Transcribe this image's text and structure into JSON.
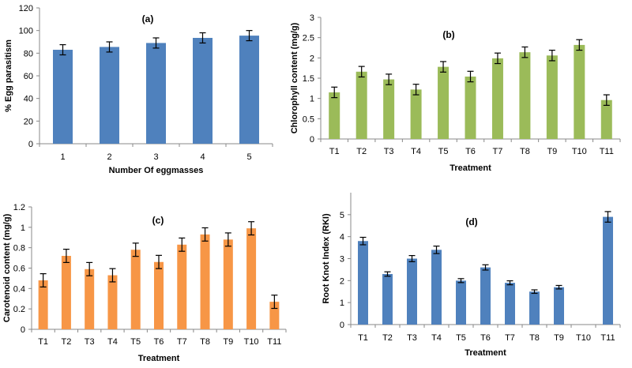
{
  "chart_data": [
    {
      "id": "a",
      "type": "bar",
      "panel_label": "(a)",
      "xlabel": "Number Of eggmasses",
      "ylabel": "% Egg parasitism",
      "ylim": [
        0,
        120
      ],
      "ytick_step": 20,
      "yticks": [
        "0",
        "20",
        "40",
        "60",
        "80",
        "100",
        "120"
      ],
      "categories": [
        "1",
        "2",
        "3",
        "4",
        "5"
      ],
      "values": [
        83,
        85.5,
        89,
        93.5,
        95.5
      ],
      "errors": [
        4.5,
        4.5,
        4.5,
        4.5,
        4.5
      ],
      "color": "#4f81bd",
      "grid": false
    },
    {
      "id": "b",
      "type": "bar",
      "panel_label": "(b)",
      "xlabel": "Treatment",
      "ylabel": "Chlorophyll content (mg/g)",
      "ylim": [
        0,
        3
      ],
      "ytick_step": 0.5,
      "yticks": [
        "0",
        "0.5",
        "1",
        "1.5",
        "2",
        "2.5",
        "3"
      ],
      "categories": [
        "T1",
        "T2",
        "T3",
        "T4",
        "T5",
        "T6",
        "T7",
        "T8",
        "T9",
        "T10",
        "T11"
      ],
      "values": [
        1.15,
        1.66,
        1.47,
        1.22,
        1.78,
        1.54,
        1.99,
        2.14,
        2.06,
        2.32,
        0.96
      ],
      "errors": [
        0.13,
        0.13,
        0.13,
        0.13,
        0.13,
        0.13,
        0.13,
        0.13,
        0.13,
        0.13,
        0.13
      ],
      "color": "#9bbb59",
      "grid": false
    },
    {
      "id": "c",
      "type": "bar",
      "panel_label": "(c)",
      "xlabel": "Treatment",
      "ylabel": "Carotenoid content (mg/g)",
      "ylim": [
        0,
        1.2
      ],
      "ytick_step": 0.2,
      "yticks": [
        "0",
        "0.2",
        "0.4",
        "0.6",
        "0.8",
        "1",
        "1.2"
      ],
      "categories": [
        "T1",
        "T2",
        "T3",
        "T4",
        "T5",
        "T6",
        "T7",
        "T8",
        "T9",
        "T10",
        "T11"
      ],
      "values": [
        0.48,
        0.72,
        0.59,
        0.53,
        0.78,
        0.66,
        0.83,
        0.93,
        0.88,
        0.99,
        0.27
      ],
      "errors": [
        0.065,
        0.065,
        0.065,
        0.065,
        0.065,
        0.065,
        0.065,
        0.065,
        0.065,
        0.065,
        0.065
      ],
      "color": "#f79646",
      "grid": false
    },
    {
      "id": "d",
      "type": "bar",
      "panel_label": "(d)",
      "xlabel": "Treatment",
      "ylabel": "Root Knot Index (RKI)",
      "ylim": [
        0,
        6
      ],
      "ytick_step": 1,
      "yticks": [
        "0",
        "1",
        "2",
        "3",
        "4",
        "5"
      ],
      "categories": [
        "T1",
        "T2",
        "T3",
        "T4",
        "T5",
        "T6",
        "T7",
        "T8",
        "T9",
        "T10",
        "T11"
      ],
      "values": [
        3.8,
        2.3,
        3.0,
        3.4,
        2.0,
        2.6,
        1.9,
        1.5,
        1.7,
        0,
        4.9
      ],
      "errors": [
        0.17,
        0.1,
        0.14,
        0.17,
        0.09,
        0.12,
        0.09,
        0.08,
        0.08,
        0,
        0.24
      ],
      "color": "#4f81bd",
      "grid": false
    }
  ]
}
